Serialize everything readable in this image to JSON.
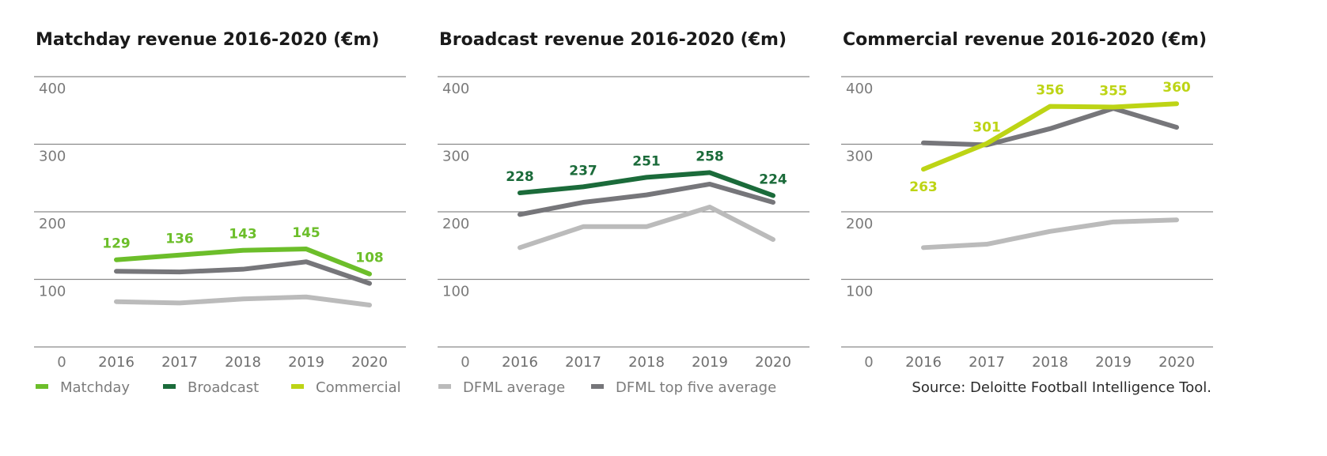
{
  "colors": {
    "matchday": "#6CBE2A",
    "broadcast": "#1B6B3A",
    "commercial": "#BDD415",
    "dfml_average": "#BBBBBB",
    "dfml_top_five": "#76767A",
    "grid": "#8A8A8A"
  },
  "legend": {
    "items": [
      {
        "label": "Matchday",
        "color_key": "matchday"
      },
      {
        "label": "Broadcast",
        "color_key": "broadcast"
      },
      {
        "label": "Commercial",
        "color_key": "commercial"
      },
      {
        "label": "DFML average",
        "color_key": "dfml_average"
      },
      {
        "label": "DFML top five average",
        "color_key": "dfml_top_five"
      }
    ]
  },
  "source": "Source: Deloitte Football Intelligence Tool.",
  "chart_data": [
    {
      "type": "line",
      "title": "Matchday revenue 2016-2020 (€m)",
      "xlabel": "",
      "ylabel": "",
      "categories": [
        "2016",
        "2017",
        "2018",
        "2019",
        "2020"
      ],
      "y_ticks": [
        "0",
        "100",
        "200",
        "300",
        "400"
      ],
      "ylim": [
        0,
        400
      ],
      "grid": true,
      "series": [
        {
          "name": "DFML average",
          "color_key": "dfml_average",
          "values": [
            67,
            65,
            71,
            74,
            62
          ],
          "labeled": false
        },
        {
          "name": "DFML top five average",
          "color_key": "dfml_top_five",
          "values": [
            112,
            111,
            115,
            126,
            94
          ],
          "labeled": false
        },
        {
          "name": "Matchday",
          "color_key": "matchday",
          "values": [
            129,
            136,
            143,
            145,
            108
          ],
          "labeled": true,
          "label_pos": [
            "above",
            "above",
            "above",
            "above",
            "above"
          ]
        }
      ]
    },
    {
      "type": "line",
      "title": "Broadcast revenue 2016-2020 (€m)",
      "xlabel": "",
      "ylabel": "",
      "categories": [
        "2016",
        "2017",
        "2018",
        "2019",
        "2020"
      ],
      "y_ticks": [
        "0",
        "100",
        "200",
        "300",
        "400"
      ],
      "ylim": [
        0,
        400
      ],
      "grid": true,
      "series": [
        {
          "name": "DFML average",
          "color_key": "dfml_average",
          "values": [
            147,
            178,
            178,
            207,
            159
          ],
          "labeled": false
        },
        {
          "name": "DFML top five average",
          "color_key": "dfml_top_five",
          "values": [
            196,
            214,
            225,
            241,
            214
          ],
          "labeled": false
        },
        {
          "name": "Broadcast",
          "color_key": "broadcast",
          "values": [
            228,
            237,
            251,
            258,
            224
          ],
          "labeled": true,
          "label_pos": [
            "above",
            "above",
            "above",
            "above",
            "above"
          ]
        }
      ]
    },
    {
      "type": "line",
      "title": "Commercial revenue 2016-2020 (€m)",
      "xlabel": "",
      "ylabel": "",
      "categories": [
        "2016",
        "2017",
        "2018",
        "2019",
        "2020"
      ],
      "y_ticks": [
        "0",
        "100",
        "200",
        "300",
        "400"
      ],
      "ylim": [
        0,
        400
      ],
      "grid": true,
      "series": [
        {
          "name": "DFML average",
          "color_key": "dfml_average",
          "values": [
            147,
            152,
            171,
            185,
            188
          ],
          "labeled": false
        },
        {
          "name": "DFML top five average",
          "color_key": "dfml_top_five",
          "values": [
            302,
            299,
            323,
            353,
            325
          ],
          "labeled": false
        },
        {
          "name": "Commercial",
          "color_key": "commercial",
          "values": [
            263,
            301,
            356,
            355,
            360
          ],
          "labeled": true,
          "label_pos": [
            "below",
            "above",
            "above",
            "above",
            "above"
          ]
        }
      ]
    }
  ]
}
